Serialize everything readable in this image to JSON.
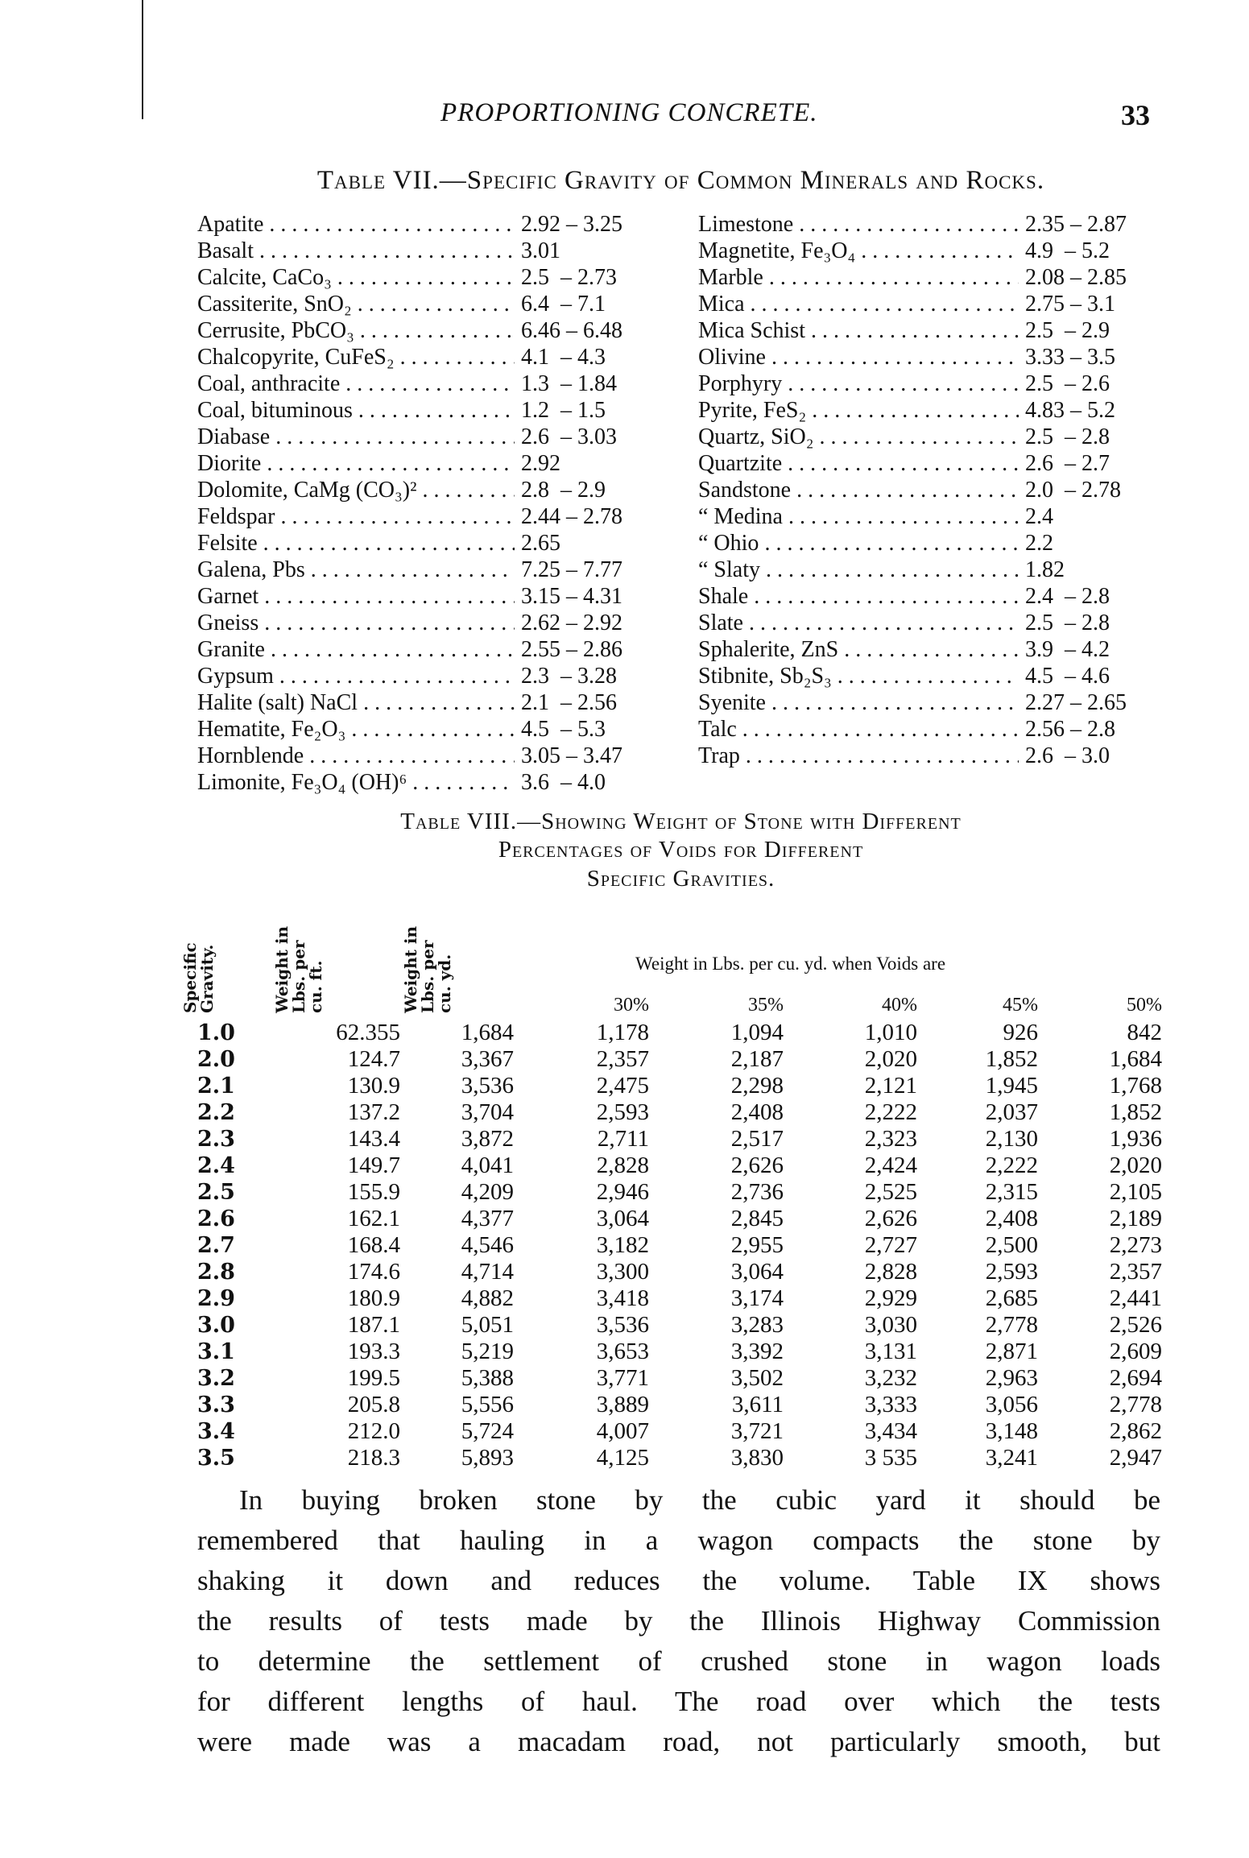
{
  "header": {
    "running_title": "PROPORTIONING CONCRETE.",
    "page_number": "33"
  },
  "table7": {
    "title": "Table VII.—Specific Gravity of Common Minerals and Rocks.",
    "left": [
      {
        "name": "Apatite",
        "value": "2.92 – 3.25"
      },
      {
        "name": "Basalt",
        "value": "3.01"
      },
      {
        "name": "Calcite, CaCo₃",
        "value": "2.5  – 2.73"
      },
      {
        "name": "Cassiterite, SnO₂",
        "value": "6.4  – 7.1"
      },
      {
        "name": "Cerrusite, PbCO₃",
        "value": "6.46 – 6.48"
      },
      {
        "name": "Chalcopyrite, CuFeS₂",
        "value": "4.1  – 4.3"
      },
      {
        "name": "Coal, anthracite",
        "value": "1.3  – 1.84"
      },
      {
        "name": "Coal, bituminous",
        "value": "1.2  – 1.5"
      },
      {
        "name": "Diabase",
        "value": "2.6  – 3.03"
      },
      {
        "name": "Diorite",
        "value": "2.92"
      },
      {
        "name": "Dolomite, CaMg (CO₃)²",
        "value": "2.8  – 2.9"
      },
      {
        "name": "Feldspar",
        "value": "2.44 – 2.78"
      },
      {
        "name": "Felsite",
        "value": "2.65"
      },
      {
        "name": "Galena, Pbs",
        "value": "7.25 – 7.77"
      },
      {
        "name": "Garnet",
        "value": "3.15 – 4.31"
      },
      {
        "name": "Gneiss",
        "value": "2.62 – 2.92"
      },
      {
        "name": "Granite",
        "value": "2.55 – 2.86"
      },
      {
        "name": "Gypsum",
        "value": "2.3  – 3.28"
      },
      {
        "name": "Halite (salt) NaCl",
        "value": "2.1  – 2.56"
      },
      {
        "name": "Hematite, Fe₂O₃",
        "value": "4.5  – 5.3"
      },
      {
        "name": "Hornblende",
        "value": "3.05 – 3.47"
      },
      {
        "name": "Limonite, Fe₃O₄ (OH)⁶",
        "value": "3.6  – 4.0"
      }
    ],
    "right": [
      {
        "name": "Limestone",
        "value": "2.35 – 2.87"
      },
      {
        "name": "Magnetite, Fe₃O₄",
        "value": "4.9  – 5.2"
      },
      {
        "name": "Marble",
        "value": "2.08 – 2.85"
      },
      {
        "name": "Mica",
        "value": "2.75 – 3.1"
      },
      {
        "name": "Mica Schist",
        "value": "2.5  – 2.9"
      },
      {
        "name": "Olivine",
        "value": "3.33 – 3.5"
      },
      {
        "name": "Porphyry",
        "value": "2.5  – 2.6"
      },
      {
        "name": "Pyrite, FeS₂",
        "value": "4.83 – 5.2"
      },
      {
        "name": "Quartz, SiO₂",
        "value": "2.5  – 2.8"
      },
      {
        "name": "Quartzite",
        "value": "2.6  – 2.7"
      },
      {
        "name": "Sandstone",
        "value": "2.0  – 2.78"
      },
      {
        "name": "“        Medina",
        "value": "2.4"
      },
      {
        "name": "“        Ohio",
        "value": "2.2"
      },
      {
        "name": "“        Slaty",
        "value": "1.82"
      },
      {
        "name": "Shale",
        "value": "2.4  – 2.8"
      },
      {
        "name": "Slate",
        "value": "2.5  – 2.8"
      },
      {
        "name": "Sphalerite, ZnS",
        "value": "3.9  – 4.2"
      },
      {
        "name": "Stibnite, Sb₂S₃",
        "value": "4.5  – 4.6"
      },
      {
        "name": "Syenite",
        "value": "2.27 – 2.65"
      },
      {
        "name": "Talc",
        "value": "2.56 – 2.8"
      },
      {
        "name": "Trap",
        "value": "2.6  – 3.0"
      }
    ]
  },
  "table8": {
    "title_lines": [
      "Table VIII.—Showing Weight of Stone with Different",
      "Percentages of Voids for Different",
      "Specific Gravities."
    ],
    "col_headers": {
      "sg": "Specific\nGravity.",
      "cuft": "Weight in\nLbs. per\ncu. ft.",
      "cuyd": "Weight in\nLbs. per\ncu. yd."
    },
    "voids_caption": "Weight in Lbs. per cu. yd. when Voids are",
    "percents": [
      "30%",
      "35%",
      "40%",
      "45%",
      "50%"
    ],
    "rows": [
      [
        "1.0",
        "62.355",
        "1,684",
        "1,178",
        "1,094",
        "1,010",
        "926",
        "842"
      ],
      [
        "2.0",
        "124.7",
        "3,367",
        "2,357",
        "2,187",
        "2,020",
        "1,852",
        "1,684"
      ],
      [
        "2.1",
        "130.9",
        "3,536",
        "2,475",
        "2,298",
        "2,121",
        "1,945",
        "1,768"
      ],
      [
        "2.2",
        "137.2",
        "3,704",
        "2,593",
        "2,408",
        "2,222",
        "2,037",
        "1,852"
      ],
      [
        "2.3",
        "143.4",
        "3,872",
        "2,711",
        "2,517",
        "2,323",
        "2,130",
        "1,936"
      ],
      [
        "2.4",
        "149.7",
        "4,041",
        "2,828",
        "2,626",
        "2,424",
        "2,222",
        "2,020"
      ],
      [
        "2.5",
        "155.9",
        "4,209",
        "2,946",
        "2,736",
        "2,525",
        "2,315",
        "2,105"
      ],
      [
        "2.6",
        "162.1",
        "4,377",
        "3,064",
        "2,845",
        "2,626",
        "2,408",
        "2,189"
      ],
      [
        "2.7",
        "168.4",
        "4,546",
        "3,182",
        "2,955",
        "2,727",
        "2,500",
        "2,273"
      ],
      [
        "2.8",
        "174.6",
        "4,714",
        "3,300",
        "3,064",
        "2,828",
        "2,593",
        "2,357"
      ],
      [
        "2.9",
        "180.9",
        "4,882",
        "3,418",
        "3,174",
        "2,929",
        "2,685",
        "2,441"
      ],
      [
        "3.0",
        "187.1",
        "5,051",
        "3,536",
        "3,283",
        "3,030",
        "2,778",
        "2,526"
      ],
      [
        "3.1",
        "193.3",
        "5,219",
        "3,653",
        "3,392",
        "3,131",
        "2,871",
        "2,609"
      ],
      [
        "3.2",
        "199.5",
        "5,388",
        "3,771",
        "3,502",
        "3,232",
        "2,963",
        "2,694"
      ],
      [
        "3.3",
        "205.8",
        "5,556",
        "3,889",
        "3,611",
        "3,333",
        "3,056",
        "2,778"
      ],
      [
        "3.4",
        "212.0",
        "5,724",
        "4,007",
        "3,721",
        "3,434",
        "3,148",
        "2,862"
      ],
      [
        "3.5",
        "218.3",
        "5,893",
        "4,125",
        "3,830",
        "3 535",
        "3,241",
        "2,947"
      ]
    ]
  },
  "paragraph_lines": [
    "In buying broken stone by the cubic yard it should be",
    "remembered that hauling in a wagon compacts the stone by",
    "shaking it down and reduces the volume. Table IX shows",
    "the results of tests made by the Illinois Highway Commission",
    "to determine the settlement of crushed stone in wagon loads",
    "for different lengths of haul. The road over which the tests",
    "were made was a macadam road, not particularly smooth, but"
  ]
}
